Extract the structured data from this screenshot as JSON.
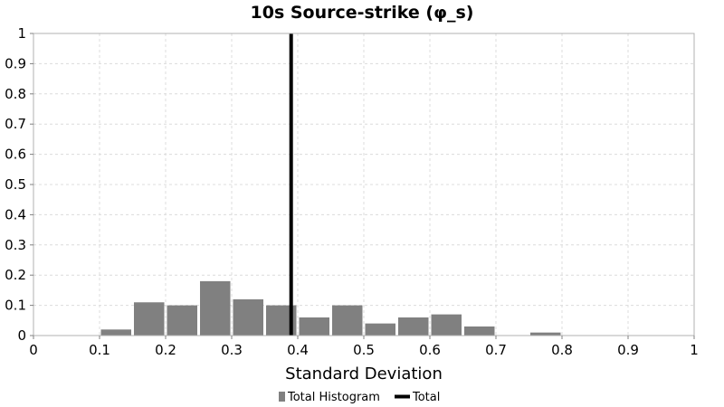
{
  "chart_data": {
    "type": "bar",
    "title": "10s Source-strike (φ_s)",
    "xlabel": "Standard Deviation",
    "ylabel": "",
    "xlim": [
      0,
      1
    ],
    "ylim": [
      0,
      1
    ],
    "x_ticks": [
      "0",
      "0.1",
      "0.2",
      "0.3",
      "0.4",
      "0.5",
      "0.6",
      "0.7",
      "0.8",
      "0.9",
      "1"
    ],
    "y_ticks": [
      "0",
      "0.1",
      "0.2",
      "0.3",
      "0.4",
      "0.5",
      "0.6",
      "0.7",
      "0.8",
      "0.9",
      "1"
    ],
    "grid": true,
    "legend_position": "bottom-center",
    "series": [
      {
        "name": "Total Histogram",
        "type": "histogram",
        "color": "#808080",
        "bin_width": 0.05,
        "bin_starts": [
          0.1,
          0.15,
          0.2,
          0.25,
          0.3,
          0.35,
          0.4,
          0.45,
          0.5,
          0.55,
          0.6,
          0.65,
          0.75
        ],
        "values": [
          0.02,
          0.11,
          0.1,
          0.18,
          0.12,
          0.1,
          0.06,
          0.1,
          0.04,
          0.06,
          0.07,
          0.03,
          0.01
        ]
      },
      {
        "name": "Total",
        "type": "vertical-line",
        "color": "#000000",
        "x": 0.39
      }
    ]
  }
}
